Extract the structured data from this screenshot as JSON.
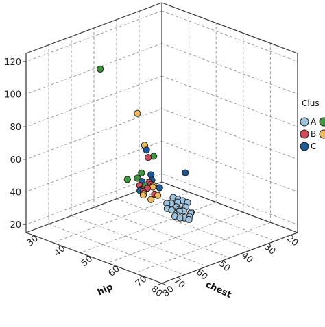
{
  "chart_data": {
    "type": "scatter",
    "title": "",
    "axes": {
      "chest": {
        "label": "chest",
        "range": [
          20,
          80
        ],
        "ticks": [
          20,
          30,
          40,
          50,
          60,
          70,
          80
        ]
      },
      "hip": {
        "label": "hip",
        "range": [
          30,
          80
        ],
        "ticks": [
          30,
          40,
          50,
          60,
          70,
          80
        ]
      },
      "z": {
        "label": "",
        "range": [
          15,
          125
        ],
        "ticks": [
          20,
          40,
          60,
          80,
          100,
          120
        ],
        "tick_labels": [
          "20",
          "40",
          "60",
          "80",
          "100",
          "120"
        ]
      }
    },
    "grid": true,
    "legend": {
      "title": "Clus",
      "position": "right",
      "entries": [
        {
          "label": "A",
          "color": "#9dc3df"
        },
        {
          "label": "B",
          "color": "#d24b5a"
        },
        {
          "label": "C",
          "color": "#1c5a9a"
        },
        {
          "label": "",
          "color": "#3c9a3c"
        },
        {
          "label": "",
          "color": "#f0b95a"
        }
      ]
    },
    "series": [
      {
        "legend_index": 0,
        "color": "#9dc3df",
        "points": [
          [
            43,
            55,
            30
          ],
          [
            45,
            57,
            28
          ],
          [
            47,
            58,
            26
          ],
          [
            44,
            58,
            27
          ],
          [
            46,
            60,
            25
          ],
          [
            48,
            57,
            29
          ],
          [
            42,
            56,
            31
          ],
          [
            45,
            59,
            24
          ],
          [
            47,
            56,
            32
          ],
          [
            44,
            56,
            33
          ],
          [
            46,
            57,
            30
          ],
          [
            49,
            59,
            27
          ],
          [
            43,
            58,
            29
          ],
          [
            45,
            55,
            34
          ],
          [
            48,
            60,
            26
          ],
          [
            46,
            58,
            28
          ],
          [
            42,
            59,
            25
          ],
          [
            50,
            57,
            31
          ],
          [
            44,
            60,
            23
          ],
          [
            47,
            59,
            29
          ],
          [
            41,
            57,
            30
          ],
          [
            49,
            56,
            33
          ],
          [
            45,
            61,
            26
          ],
          [
            43,
            60,
            27
          ]
        ]
      },
      {
        "legend_index": 1,
        "color": "#d24b5a",
        "points": [
          [
            50,
            50,
            58
          ],
          [
            50,
            51,
            42
          ],
          [
            52,
            52,
            45
          ],
          [
            53,
            50,
            40
          ],
          [
            54,
            53,
            43
          ],
          [
            51,
            49,
            37
          ],
          [
            55,
            51,
            44
          ],
          [
            52,
            54,
            39
          ]
        ]
      },
      {
        "legend_index": 2,
        "color": "#1c5a9a",
        "points": [
          [
            46,
            46,
            58
          ],
          [
            48,
            62,
            55
          ],
          [
            52,
            53,
            47
          ],
          [
            54,
            51,
            46
          ],
          [
            51,
            55,
            43
          ],
          [
            56,
            52,
            42
          ],
          [
            50,
            51,
            48
          ]
        ]
      },
      {
        "legend_index": 3,
        "color": "#3c9a3c",
        "points": [
          [
            70,
            49,
            122
          ],
          [
            50,
            52,
            60
          ],
          [
            56,
            51,
            49
          ],
          [
            53,
            50,
            50
          ],
          [
            55,
            53,
            45
          ],
          [
            58,
            49,
            48
          ]
        ]
      },
      {
        "legend_index": 4,
        "color": "#f0b95a",
        "points": [
          [
            62,
            56,
            95
          ],
          [
            60,
            57,
            75
          ],
          [
            54,
            55,
            45
          ],
          [
            57,
            54,
            41
          ],
          [
            55,
            56,
            47
          ],
          [
            58,
            55,
            43
          ],
          [
            53,
            56,
            40
          ],
          [
            56,
            56,
            39
          ]
        ]
      }
    ]
  }
}
